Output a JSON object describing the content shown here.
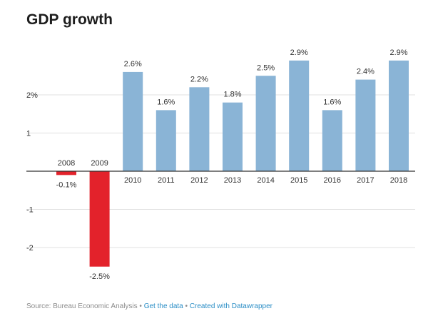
{
  "title": "GDP growth",
  "footer": {
    "source": "Source: Bureau Economic Analysis",
    "separator": " • ",
    "get_data": "Get the data",
    "created_with": "Created with Datawrapper"
  },
  "colors": {
    "positive": "#8ab4d6",
    "negative": "#e3222b",
    "grid": "#e0e0e0",
    "axis": "#333333"
  },
  "chart_data": {
    "type": "bar",
    "categories": [
      "2008",
      "2009",
      "2010",
      "2011",
      "2012",
      "2013",
      "2014",
      "2015",
      "2016",
      "2017",
      "2018"
    ],
    "values": [
      -0.1,
      -2.5,
      2.6,
      1.6,
      2.2,
      1.8,
      2.5,
      2.9,
      1.6,
      2.4,
      2.9
    ],
    "value_labels": [
      "-0.1%",
      "-2.5%",
      "2.6%",
      "1.6%",
      "2.2%",
      "1.8%",
      "2.5%",
      "2.9%",
      "1.6%",
      "2.4%",
      "2.9%"
    ],
    "yticks": [
      2,
      1,
      -1,
      -2
    ],
    "ytick_labels": [
      "2%",
      "1",
      "-1",
      "-2"
    ],
    "ylim": [
      -2.5,
      2.9
    ],
    "grid": true,
    "title": "GDP growth",
    "xlabel": "",
    "ylabel": ""
  }
}
